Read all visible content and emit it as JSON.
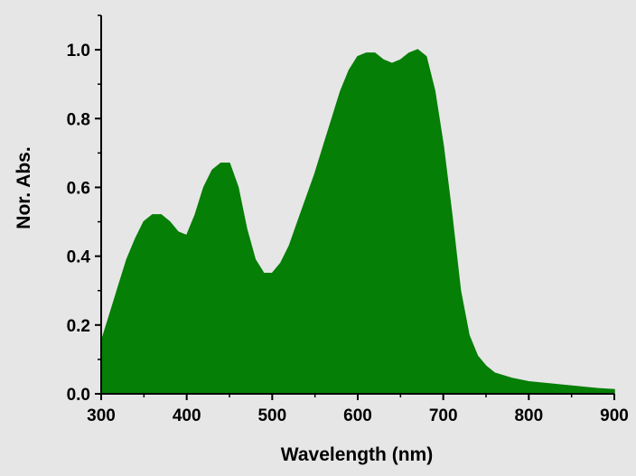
{
  "chart_data": {
    "type": "area",
    "xlabel": "Wavelength (nm)",
    "ylabel": "Nor. Abs.",
    "xlim": [
      300,
      900
    ],
    "ylim": [
      0,
      1.1
    ],
    "xticks": [
      300,
      400,
      500,
      600,
      700,
      800,
      900
    ],
    "xtick_labels": [
      "300",
      "400",
      "500",
      "600",
      "700",
      "800",
      "900"
    ],
    "yticks": [
      0,
      0.2,
      0.4,
      0.6,
      0.8,
      1.0
    ],
    "ytick_labels": [
      "0.0",
      "0.2",
      "0.4",
      "0.6",
      "0.8",
      "1.0"
    ],
    "grid": false,
    "legend": "none",
    "fill_color": "#057f05",
    "series": [
      {
        "x": [
          300,
          310,
          320,
          330,
          340,
          350,
          360,
          370,
          380,
          390,
          400,
          410,
          420,
          430,
          440,
          450,
          460,
          470,
          480,
          490,
          500,
          510,
          520,
          530,
          540,
          550,
          560,
          570,
          580,
          590,
          600,
          610,
          620,
          630,
          640,
          650,
          660,
          670,
          680,
          690,
          700,
          710,
          720,
          730,
          740,
          750,
          760,
          780,
          800,
          820,
          840,
          860,
          880,
          900
        ],
        "y": [
          0.15,
          0.23,
          0.31,
          0.39,
          0.45,
          0.5,
          0.52,
          0.52,
          0.5,
          0.47,
          0.46,
          0.52,
          0.6,
          0.65,
          0.67,
          0.67,
          0.6,
          0.48,
          0.39,
          0.35,
          0.35,
          0.38,
          0.43,
          0.5,
          0.57,
          0.64,
          0.72,
          0.8,
          0.88,
          0.94,
          0.98,
          0.99,
          0.99,
          0.97,
          0.96,
          0.97,
          0.99,
          1.0,
          0.98,
          0.88,
          0.72,
          0.52,
          0.3,
          0.17,
          0.11,
          0.08,
          0.06,
          0.045,
          0.035,
          0.03,
          0.025,
          0.02,
          0.015,
          0.012
        ]
      }
    ]
  }
}
